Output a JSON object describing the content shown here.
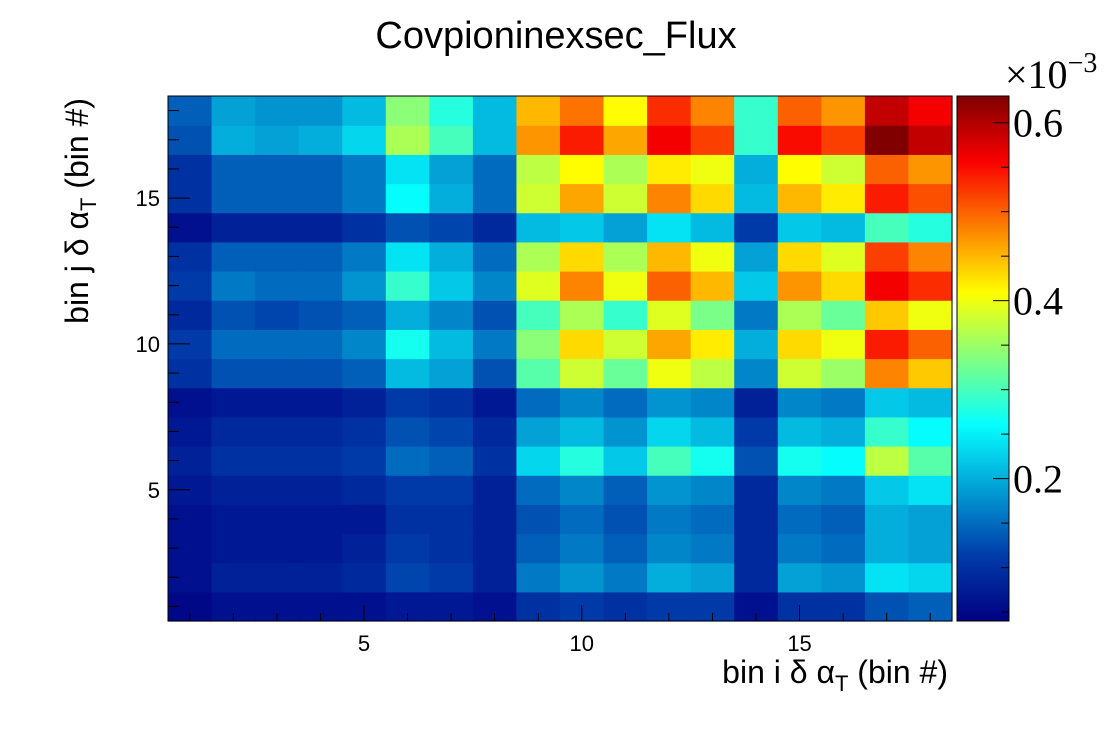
{
  "chart_data": {
    "type": "heatmap",
    "title": "Covpioninexsec_Flux",
    "xlabel": "bin i δ α",
    "xlabel_sub": "T",
    "xlabel_suffix": " (bin #)",
    "ylabel": "bin j δ α",
    "ylabel_sub": "T",
    "ylabel_suffix": " (bin #)",
    "nx": 18,
    "ny": 18,
    "xlim": [
      0.5,
      18.5
    ],
    "ylim": [
      0.5,
      18.5
    ],
    "x_ticks": [
      5,
      10,
      15
    ],
    "y_ticks": [
      5,
      10,
      15
    ],
    "colorbar": {
      "exponent_base": "×10",
      "exponent_power": "−3",
      "min": 0.04,
      "max": 0.63,
      "ticks": [
        0.2,
        0.4,
        0.6
      ],
      "palette": "jet"
    },
    "values": [
      [
        0.05,
        0.06,
        0.06,
        0.06,
        0.06,
        0.07,
        0.07,
        0.06,
        0.1,
        0.11,
        0.1,
        0.11,
        0.11,
        0.06,
        0.1,
        0.1,
        0.13,
        0.14
      ],
      [
        0.06,
        0.08,
        0.08,
        0.08,
        0.09,
        0.12,
        0.11,
        0.08,
        0.16,
        0.18,
        0.16,
        0.2,
        0.19,
        0.09,
        0.19,
        0.18,
        0.24,
        0.23
      ],
      [
        0.06,
        0.07,
        0.07,
        0.07,
        0.08,
        0.11,
        0.1,
        0.08,
        0.14,
        0.16,
        0.14,
        0.17,
        0.16,
        0.09,
        0.16,
        0.15,
        0.2,
        0.19
      ],
      [
        0.06,
        0.07,
        0.07,
        0.07,
        0.07,
        0.1,
        0.1,
        0.08,
        0.13,
        0.15,
        0.13,
        0.16,
        0.15,
        0.09,
        0.15,
        0.14,
        0.2,
        0.19
      ],
      [
        0.07,
        0.08,
        0.08,
        0.08,
        0.09,
        0.11,
        0.11,
        0.08,
        0.15,
        0.17,
        0.14,
        0.18,
        0.17,
        0.09,
        0.17,
        0.16,
        0.22,
        0.24
      ],
      [
        0.08,
        0.1,
        0.1,
        0.1,
        0.11,
        0.15,
        0.14,
        0.1,
        0.23,
        0.28,
        0.22,
        0.3,
        0.27,
        0.13,
        0.27,
        0.26,
        0.37,
        0.31
      ],
      [
        0.07,
        0.09,
        0.09,
        0.09,
        0.1,
        0.13,
        0.12,
        0.09,
        0.19,
        0.21,
        0.18,
        0.23,
        0.21,
        0.11,
        0.21,
        0.2,
        0.29,
        0.26
      ],
      [
        0.06,
        0.07,
        0.07,
        0.07,
        0.08,
        0.11,
        0.1,
        0.07,
        0.15,
        0.17,
        0.15,
        0.18,
        0.17,
        0.08,
        0.17,
        0.16,
        0.22,
        0.21
      ],
      [
        0.1,
        0.13,
        0.13,
        0.13,
        0.14,
        0.21,
        0.19,
        0.13,
        0.31,
        0.38,
        0.32,
        0.4,
        0.37,
        0.17,
        0.38,
        0.35,
        0.48,
        0.44
      ],
      [
        0.11,
        0.15,
        0.15,
        0.15,
        0.17,
        0.27,
        0.21,
        0.16,
        0.34,
        0.43,
        0.38,
        0.46,
        0.42,
        0.2,
        0.43,
        0.4,
        0.54,
        0.5
      ],
      [
        0.09,
        0.13,
        0.12,
        0.13,
        0.14,
        0.2,
        0.17,
        0.13,
        0.3,
        0.36,
        0.29,
        0.39,
        0.33,
        0.16,
        0.36,
        0.32,
        0.44,
        0.4
      ],
      [
        0.11,
        0.16,
        0.15,
        0.15,
        0.18,
        0.29,
        0.22,
        0.17,
        0.39,
        0.48,
        0.4,
        0.5,
        0.45,
        0.22,
        0.47,
        0.43,
        0.56,
        0.53
      ],
      [
        0.1,
        0.14,
        0.14,
        0.14,
        0.16,
        0.24,
        0.2,
        0.15,
        0.36,
        0.43,
        0.36,
        0.45,
        0.4,
        0.19,
        0.43,
        0.39,
        0.52,
        0.48
      ],
      [
        0.06,
        0.08,
        0.08,
        0.08,
        0.1,
        0.13,
        0.12,
        0.09,
        0.21,
        0.22,
        0.19,
        0.24,
        0.21,
        0.11,
        0.22,
        0.21,
        0.3,
        0.28
      ],
      [
        0.1,
        0.14,
        0.14,
        0.14,
        0.16,
        0.26,
        0.2,
        0.15,
        0.38,
        0.46,
        0.38,
        0.48,
        0.43,
        0.21,
        0.45,
        0.42,
        0.54,
        0.51
      ],
      [
        0.1,
        0.14,
        0.14,
        0.14,
        0.16,
        0.24,
        0.19,
        0.15,
        0.37,
        0.41,
        0.36,
        0.42,
        0.4,
        0.2,
        0.41,
        0.38,
        0.5,
        0.47
      ],
      [
        0.13,
        0.2,
        0.19,
        0.2,
        0.23,
        0.36,
        0.3,
        0.21,
        0.47,
        0.54,
        0.46,
        0.56,
        0.52,
        0.29,
        0.55,
        0.52,
        0.63,
        0.59
      ],
      [
        0.14,
        0.19,
        0.18,
        0.18,
        0.21,
        0.34,
        0.28,
        0.21,
        0.45,
        0.49,
        0.41,
        0.53,
        0.48,
        0.29,
        0.5,
        0.47,
        0.59,
        0.56
      ]
    ]
  }
}
